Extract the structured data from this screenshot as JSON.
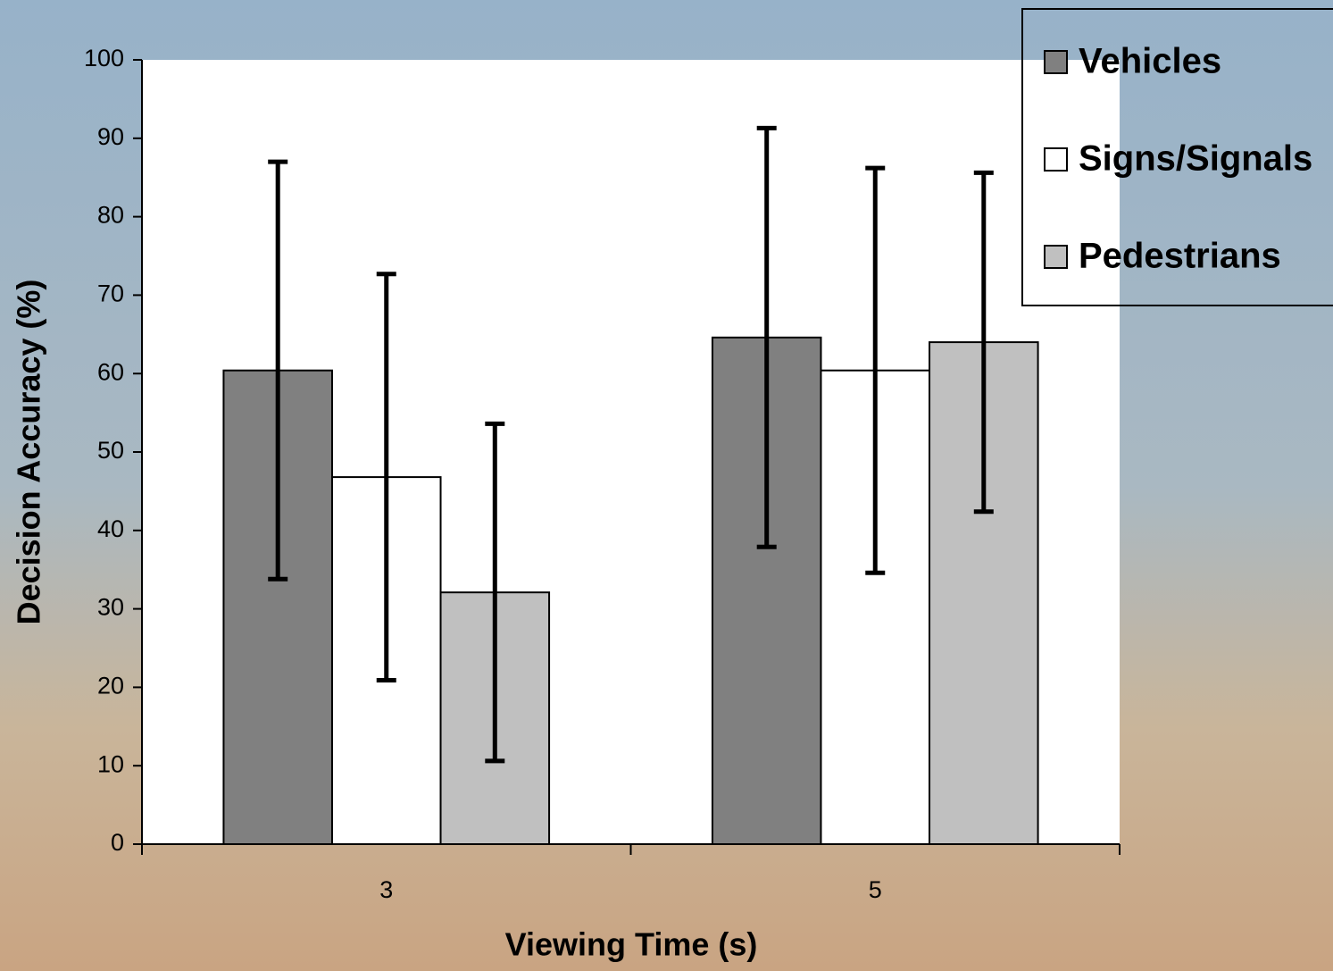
{
  "chart_data": {
    "type": "bar",
    "x_label": "Viewing Time (s)",
    "y_label": "Decision Accuracy (%)",
    "categories": [
      "3",
      "5"
    ],
    "series": [
      {
        "name": "Vehicles",
        "color": "#808080",
        "values": [
          60.4,
          64.6
        ],
        "errors": [
          26.6,
          26.7
        ]
      },
      {
        "name": "Signs/Signals",
        "color": "#ffffff",
        "values": [
          46.8,
          60.4
        ],
        "errors": [
          25.9,
          25.8
        ]
      },
      {
        "name": "Pedestrians",
        "color": "#c0c0c0",
        "values": [
          32.1,
          64.0
        ],
        "errors": [
          21.5,
          21.6
        ]
      }
    ],
    "ylim": [
      0,
      100
    ],
    "yticks": [
      0,
      10,
      20,
      30,
      40,
      50,
      60,
      70,
      80,
      90,
      100
    ],
    "grid": false,
    "legend": "upper right"
  }
}
